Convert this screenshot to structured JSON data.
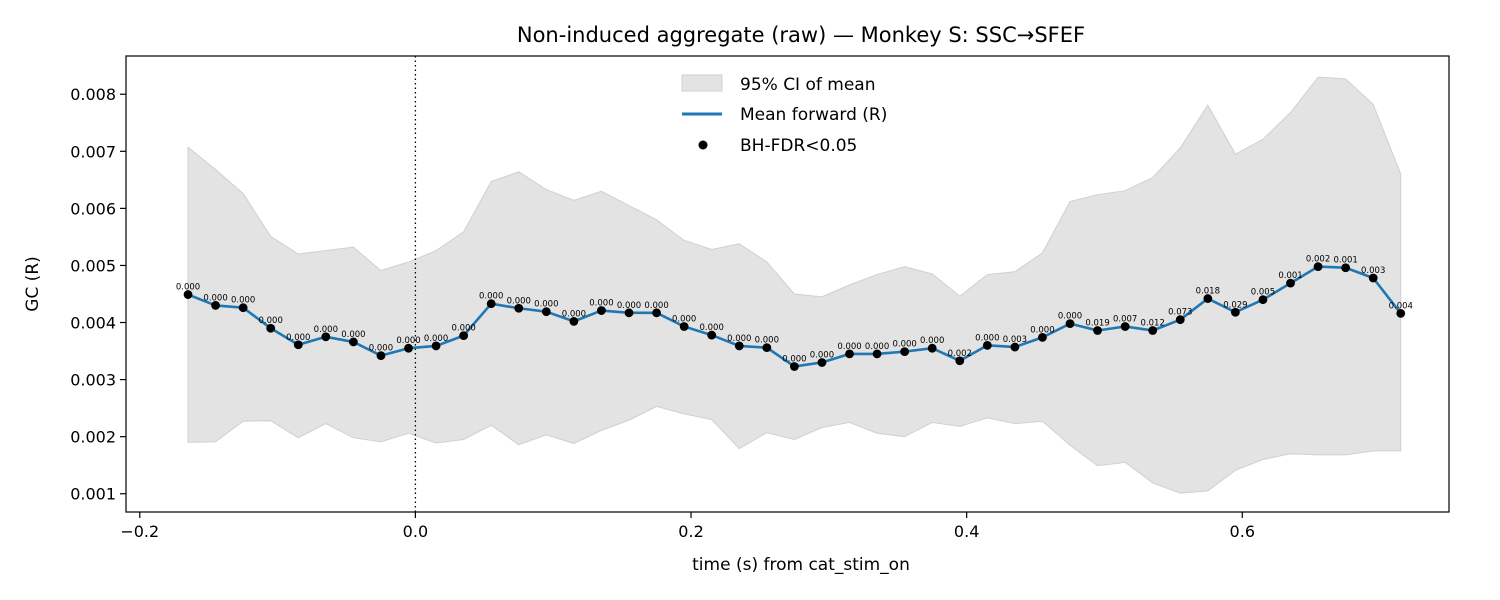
{
  "chart_data": {
    "type": "line",
    "title": "Non-induced aggregate (raw) — Monkey S: SSC→SFEF",
    "xlabel": "time (s) from cat_stim_on",
    "ylabel": "GC (R)",
    "xlim": [
      -0.21,
      0.75
    ],
    "ylim": [
      0.00068,
      0.00867
    ],
    "xticks": [
      -0.2,
      0.0,
      0.2,
      0.4,
      0.6
    ],
    "xtick_labels": [
      "−0.2",
      "0.0",
      "0.2",
      "0.4",
      "0.6"
    ],
    "yticks": [
      0.001,
      0.002,
      0.003,
      0.004,
      0.005,
      0.006,
      0.007,
      0.008
    ],
    "ytick_labels": [
      "0.001",
      "0.002",
      "0.003",
      "0.004",
      "0.005",
      "0.006",
      "0.007",
      "0.008"
    ],
    "vline_x": 0.0,
    "grid": false,
    "legend_position": "upper center",
    "legend": {
      "ci_label": "95% CI of mean",
      "mean_label": "Mean forward (R)",
      "sig_label": "BH-FDR<0.05"
    },
    "colors": {
      "mean_line": "#1f77b4",
      "ci_fill": "#e3e3e3",
      "ci_edge": "#d0d0d0",
      "points": "#000000"
    },
    "x": [
      -0.165,
      -0.145,
      -0.125,
      -0.105,
      -0.085,
      -0.065,
      -0.045,
      -0.025,
      -0.005,
      0.015,
      0.035,
      0.055,
      0.075,
      0.095,
      0.115,
      0.135,
      0.155,
      0.175,
      0.195,
      0.215,
      0.235,
      0.255,
      0.275,
      0.295,
      0.315,
      0.335,
      0.355,
      0.375,
      0.395,
      0.415,
      0.435,
      0.455,
      0.475,
      0.495,
      0.515,
      0.535,
      0.555,
      0.575,
      0.595,
      0.615,
      0.635,
      0.655,
      0.675,
      0.695,
      0.715
    ],
    "series": [
      {
        "name": "Mean forward (R)",
        "values": [
          0.00449,
          0.0043,
          0.00426,
          0.0039,
          0.00361,
          0.00375,
          0.00366,
          0.00342,
          0.00355,
          0.00359,
          0.00377,
          0.00433,
          0.00425,
          0.00419,
          0.00402,
          0.00421,
          0.00417,
          0.00417,
          0.00393,
          0.00378,
          0.00359,
          0.00356,
          0.00323,
          0.0033,
          0.00345,
          0.00345,
          0.00349,
          0.00355,
          0.00333,
          0.0036,
          0.00357,
          0.00374,
          0.00398,
          0.00386,
          0.00393,
          0.00386,
          0.00405,
          0.00442,
          0.00418,
          0.0044,
          0.00469,
          0.00498,
          0.00496,
          0.00478,
          0.00416
        ]
      }
    ],
    "ci_upper": [
      0.00707,
      0.00668,
      0.00626,
      0.00551,
      0.0052,
      0.00526,
      0.00532,
      0.00491,
      0.00506,
      0.00526,
      0.00559,
      0.00647,
      0.00664,
      0.00633,
      0.00614,
      0.0063,
      0.00605,
      0.0058,
      0.00544,
      0.00528,
      0.00538,
      0.00506,
      0.0045,
      0.00445,
      0.00466,
      0.00484,
      0.00498,
      0.00485,
      0.00446,
      0.00484,
      0.00489,
      0.00522,
      0.00612,
      0.00624,
      0.00631,
      0.00654,
      0.00706,
      0.00781,
      0.00695,
      0.00721,
      0.00768,
      0.0083,
      0.00827,
      0.00782,
      0.0066
    ],
    "ci_lower": [
      0.0019,
      0.00191,
      0.00227,
      0.00228,
      0.00198,
      0.00223,
      0.00198,
      0.00191,
      0.00206,
      0.00189,
      0.00195,
      0.0022,
      0.00186,
      0.00203,
      0.00188,
      0.00211,
      0.00229,
      0.00253,
      0.0024,
      0.0023,
      0.00179,
      0.00207,
      0.00195,
      0.00216,
      0.00225,
      0.00206,
      0.002,
      0.00225,
      0.00218,
      0.00233,
      0.00223,
      0.00227,
      0.00185,
      0.00149,
      0.00155,
      0.00119,
      0.00101,
      0.00105,
      0.00141,
      0.0016,
      0.0017,
      0.00168,
      0.00168,
      0.00175,
      0.00175
    ],
    "p_labels": [
      "0.000",
      "0.000",
      "0.000",
      "0.000",
      "0.000",
      "0.000",
      "0.000",
      "0.000",
      "0.000",
      "0.000",
      "0.000",
      "0.000",
      "0.000",
      "0.000",
      "0.000",
      "0.000",
      "0.000",
      "0.000",
      "0.000",
      "0.000",
      "0.000",
      "0.000",
      "0.000",
      "0.000",
      "0.000",
      "0.000",
      "0.000",
      "0.000",
      "0.002",
      "0.000",
      "0.003",
      "0.000",
      "0.000",
      "0.019",
      "0.007",
      "0.012",
      "0.073",
      "0.018",
      "0.029",
      "0.005",
      "0.001",
      "0.002",
      "0.001",
      "0.003",
      "0.004"
    ]
  }
}
